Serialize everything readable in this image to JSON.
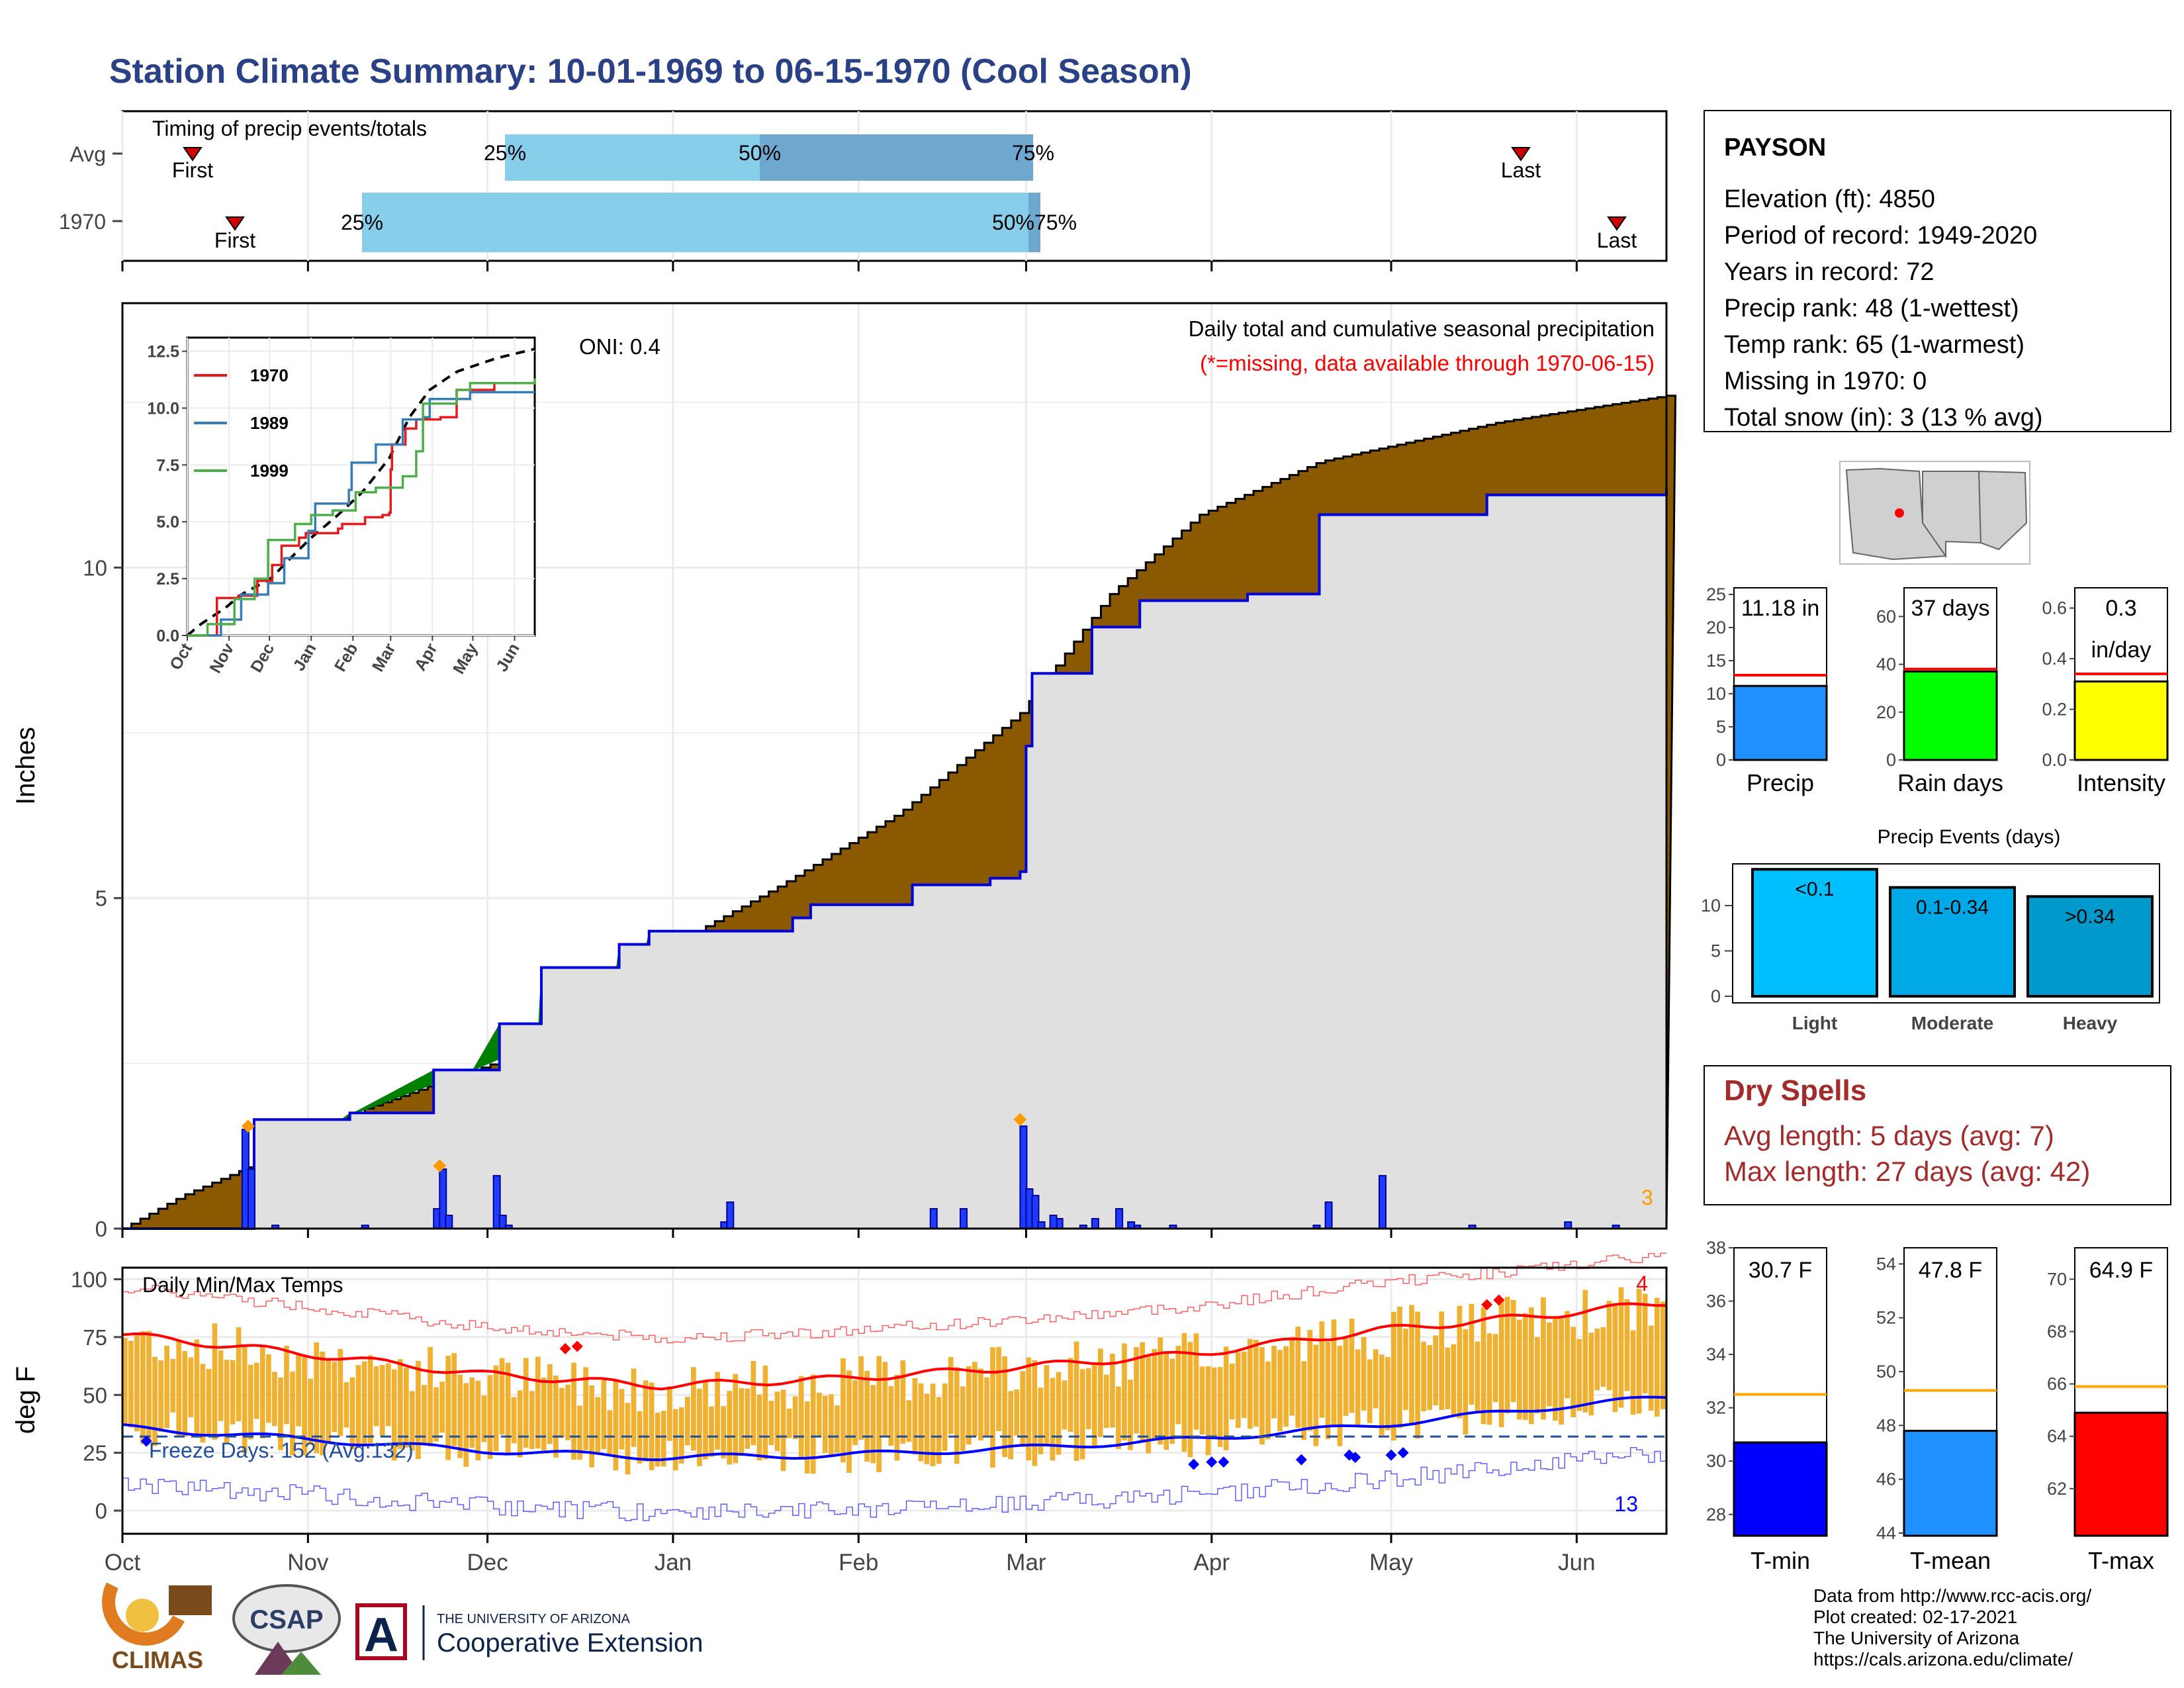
{
  "title": "Station Climate Summary: 10-01-1969 to 06-15-1970 (Cool Season)",
  "timing": {
    "label": "Timing of precip events/totals",
    "rows": [
      "Avg",
      "1970"
    ],
    "first_label": "First",
    "last_label": "Last",
    "pct_labels": [
      "25%",
      "50%",
      "75%"
    ],
    "overlap_label": "50%75%",
    "colors": {
      "light": "#87ceeb",
      "mid": "#6fa8cf",
      "dark": "#5b9ac9",
      "marker": "#d00000"
    }
  },
  "precip_panel": {
    "ylabel": "Inches",
    "oni": "ONI: 0.4",
    "legend_title": "Daily total and cumulative seasonal precipitation",
    "legend_missing": "(*=missing, data available through 1970-06-15)",
    "snow_count": "3",
    "yticks": [
      "0",
      "5",
      "10"
    ],
    "colors": {
      "brown": "#8b5a00",
      "green": "#008000",
      "grey": "#e0e0e0",
      "blue": "#0000dd",
      "daily": "#0033ff",
      "orange": "#ff9900"
    }
  },
  "inset": {
    "yticks": [
      "0.0",
      "2.5",
      "5.0",
      "7.5",
      "10.0",
      "12.5"
    ],
    "xticks": [
      "Oct",
      "Nov",
      "Dec",
      "Jan",
      "Feb",
      "Mar",
      "Apr",
      "May",
      "Jun"
    ],
    "legend": [
      {
        "name": "1970",
        "color": "#e41a1c"
      },
      {
        "name": "1989",
        "color": "#377eb8"
      },
      {
        "name": "1999",
        "color": "#4daf4a"
      }
    ]
  },
  "temp_panel": {
    "ylabel": "deg F",
    "label": "Daily Min/Max Temps",
    "freeze_label": "Freeze Days: 152 (Avg:132)",
    "count_hot": "4",
    "count_cold": "13",
    "yticks": [
      "0",
      "25",
      "50",
      "75",
      "100"
    ],
    "colors": {
      "bars": "#f0b030",
      "max": "#ff0000",
      "min": "#0000ff",
      "freeze": "#1f4e9e"
    }
  },
  "months": [
    "Oct",
    "Nov",
    "Dec",
    "Jan",
    "Feb",
    "Mar",
    "Apr",
    "May",
    "Jun"
  ],
  "station": {
    "name": "PAYSON",
    "lines": [
      "Elevation (ft): 4850",
      "Period of record: 1949-2020",
      "Years in record: 72",
      "Precip rank: 48 (1-wettest)",
      "Temp rank: 65 (1-warmest)",
      "Missing in 1970: 0",
      "Total snow (in): 3 (13 % avg)"
    ]
  },
  "mini_bars": [
    {
      "label": "Precip",
      "value_text": "11.18 in",
      "value": 11.18,
      "avg": 12.8,
      "ymax": 26,
      "ticks": [
        "0",
        "5",
        "10",
        "15",
        "20",
        "25"
      ],
      "tick_vals": [
        0,
        5,
        10,
        15,
        20,
        25
      ],
      "color": "#1e90ff"
    },
    {
      "label": "Rain days",
      "value_text": "37 days",
      "value": 37,
      "avg": 38,
      "ymax": 72,
      "ticks": [
        "0",
        "20",
        "40",
        "60"
      ],
      "tick_vals": [
        0,
        20,
        40,
        60
      ],
      "color": "#00ff00"
    },
    {
      "label": "Intensity",
      "value_text": "0.3",
      "value_text2": "in/day",
      "value": 0.31,
      "avg": 0.34,
      "ymax": 0.68,
      "ticks": [
        "0.0",
        "0.2",
        "0.4",
        "0.6"
      ],
      "tick_vals": [
        0,
        0.2,
        0.4,
        0.6
      ],
      "color": "#ffff00"
    }
  ],
  "events": {
    "title": "Precip Events (days)",
    "ticks": [
      "0",
      "5",
      "10"
    ],
    "bars": [
      {
        "label": "Light",
        "value_text": "<0.1",
        "value": 14,
        "color": "#00bfff"
      },
      {
        "label": "Moderate",
        "value_text": "0.1-0.34",
        "value": 12,
        "color": "#00a9e6"
      },
      {
        "label": "Heavy",
        "value_text": ">0.34",
        "value": 11,
        "color": "#0099cc"
      }
    ]
  },
  "dry_spells": {
    "title": "Dry Spells",
    "avg": "Avg length: 5 days (avg: 7)",
    "max": "Max length: 27 days (avg: 42)",
    "color": "#a52a2a"
  },
  "temp_bars": [
    {
      "label": "T-min",
      "value_text": "30.7 F",
      "value": 30.7,
      "avg": 32.5,
      "ymin": 27.2,
      "ymax": 38.0,
      "ticks": [
        "28",
        "30",
        "32",
        "34",
        "36",
        "38"
      ],
      "tick_vals": [
        28,
        30,
        32,
        34,
        36,
        38
      ],
      "color": "#0000ff"
    },
    {
      "label": "T-mean",
      "value_text": "47.8 F",
      "value": 47.8,
      "avg": 49.3,
      "ymin": 43.9,
      "ymax": 54.6,
      "ticks": [
        "44",
        "46",
        "48",
        "50",
        "52",
        "54"
      ],
      "tick_vals": [
        44,
        46,
        48,
        50,
        52,
        54
      ],
      "color": "#1e90ff"
    },
    {
      "label": "T-max",
      "value_text": "64.9 F",
      "value": 64.9,
      "avg": 65.9,
      "ymin": 60.2,
      "ymax": 71.2,
      "ticks": [
        "62",
        "64",
        "66",
        "68",
        "70"
      ],
      "tick_vals": [
        62,
        64,
        66,
        68,
        70
      ],
      "color": "#ff0000"
    }
  ],
  "credits": [
    "Data from http://www.rcc-acis.org/",
    "Plot created: 02-17-2021",
    "The University of Arizona",
    "https://cals.arizona.edu/climate/"
  ],
  "logos": {
    "climas": "CLIMAS",
    "csap": "CSAP",
    "ua_small": "THE UNIVERSITY OF ARIZONA",
    "ua_big": "Cooperative Extension",
    "ua_letter": "A"
  },
  "chart_data": {
    "type": "area",
    "title": "Daily total and cumulative seasonal precipitation",
    "ylabel": "Inches",
    "ylim": [
      0,
      14
    ],
    "x_months": [
      "Oct",
      "Nov",
      "Dec",
      "Jan",
      "Feb",
      "Mar",
      "Apr",
      "May",
      "Jun"
    ],
    "series": [
      {
        "name": "Cumulative average",
        "x_day": [
          0,
          10,
          28,
          40,
          62,
          75,
          92,
          110,
          130,
          150,
          165,
          180,
          200,
          230,
          258
        ],
        "values": [
          0,
          0.5,
          1.2,
          1.8,
          2.5,
          3.3,
          4.3,
          5.2,
          6.3,
          7.8,
          9.6,
          10.8,
          11.6,
          12.2,
          12.6
        ]
      },
      {
        "name": "1970",
        "x_day": [
          0,
          20,
          22,
          36,
          38,
          50,
          52,
          62,
          63,
          70,
          82,
          83,
          88,
          110,
          112,
          115,
          130,
          132,
          145,
          150,
          151,
          152,
          162,
          170,
          188,
          200,
          228,
          258
        ],
        "values": [
          0,
          0,
          1.65,
          1.65,
          1.75,
          1.75,
          2.4,
          2.4,
          3.1,
          3.95,
          3.95,
          4.3,
          4.5,
          4.5,
          4.7,
          4.9,
          4.9,
          5.2,
          5.3,
          5.4,
          7.3,
          8.4,
          9.1,
          9.5,
          9.6,
          10.8,
          11.1,
          11.2
        ]
      }
    ],
    "daily": {
      "x_day": [
        20,
        21,
        25,
        40,
        52,
        53,
        54,
        62,
        63,
        64,
        100,
        101,
        135,
        140,
        156,
        169,
        150,
        151,
        152,
        153,
        155,
        160,
        162,
        166,
        168,
        175,
        199,
        201,
        210,
        225,
        241,
        249
      ],
      "values": [
        1.5,
        0.9,
        0.05,
        0.05,
        0.3,
        0.9,
        0.2,
        0.8,
        0.2,
        0.05,
        0.1,
        0.4,
        0.3,
        0.3,
        0.15,
        0.05,
        1.55,
        0.6,
        0.5,
        0.1,
        0.2,
        0.05,
        0.15,
        0.3,
        0.1,
        0.05,
        0.05,
        0.4,
        0.8,
        0.05,
        0.1,
        0.05
      ]
    },
    "inset": {
      "ylim": [
        0,
        13
      ],
      "series": [
        {
          "name": "1970",
          "x_day": [
            0,
            20,
            22,
            36,
            38,
            50,
            52,
            62,
            63,
            70,
            82,
            83,
            88,
            110,
            112,
            115,
            130,
            132,
            145,
            150,
            151,
            152,
            162,
            170,
            188,
            200,
            228,
            258
          ],
          "values": [
            0,
            0,
            1.65,
            1.65,
            1.75,
            1.75,
            2.4,
            2.4,
            3.1,
            3.95,
            3.95,
            4.3,
            4.5,
            4.5,
            4.7,
            4.9,
            4.9,
            5.2,
            5.3,
            5.4,
            7.3,
            8.4,
            9.1,
            9.5,
            9.6,
            10.8,
            11.1,
            11.2
          ]
        },
        {
          "name": "1989",
          "x_day": [
            0,
            25,
            40,
            60,
            72,
            90,
            95,
            100,
            120,
            122,
            140,
            150,
            160,
            165,
            175,
            180,
            200,
            210,
            240,
            258
          ],
          "values": [
            0,
            0.7,
            1.8,
            2.3,
            3.4,
            4.6,
            5.8,
            5.8,
            6.4,
            7.6,
            8.4,
            8.4,
            9.5,
            9.5,
            9.6,
            10.4,
            10.4,
            10.7,
            10.7,
            10.7
          ]
        },
        {
          "name": "1999",
          "x_day": [
            0,
            15,
            35,
            50,
            60,
            80,
            92,
            108,
            125,
            140,
            160,
            170,
            175,
            190,
            200,
            210,
            258
          ],
          "values": [
            0,
            0.5,
            1.6,
            2.5,
            4.2,
            4.9,
            5.3,
            5.5,
            6.3,
            6.5,
            7.0,
            8.1,
            10.2,
            10.2,
            10.8,
            11.1,
            11.3
          ]
        }
      ]
    },
    "temps": {
      "ylim": [
        -10,
        105
      ],
      "avg_max_x": [
        0,
        30,
        60,
        90,
        120,
        150,
        180,
        210,
        240,
        258
      ],
      "avg_max": [
        76,
        68,
        59,
        54,
        57,
        62,
        68,
        78,
        85,
        90
      ],
      "avg_min": [
        36,
        31,
        26,
        23,
        24,
        27,
        31,
        37,
        45,
        49
      ],
      "freeze_line": 32
    }
  }
}
